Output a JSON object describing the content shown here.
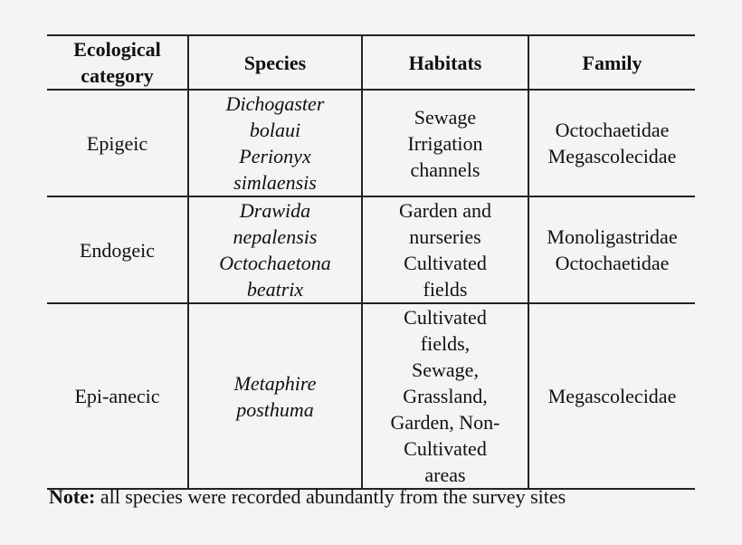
{
  "table": {
    "headers": [
      [
        "Ecological",
        "category"
      ],
      [
        "Species"
      ],
      [
        "Habitats"
      ],
      [
        "Family"
      ]
    ],
    "rows": [
      {
        "category": "Epigeic",
        "species": [
          "Dichogaster",
          "bolaui",
          "Perionyx",
          "simlaensis"
        ],
        "habitats": [
          "Sewage",
          "Irrigation",
          "channels"
        ],
        "family": [
          "Octochaetidae",
          "Megascolecidae"
        ]
      },
      {
        "category": "Endogeic",
        "species": [
          "Drawida",
          "nepalensis",
          "Octochaetona",
          "beatrix"
        ],
        "habitats": [
          "Garden and",
          "nurseries",
          "Cultivated",
          "fields"
        ],
        "family": [
          "Monoligastridae",
          "Octochaetidae"
        ]
      },
      {
        "category": "Epi-anecic",
        "species": [
          "Metaphire",
          "posthuma"
        ],
        "habitats": [
          "Cultivated",
          "fields,",
          "Sewage,",
          "Grassland,",
          "Garden, Non-",
          "Cultivated",
          "areas"
        ],
        "family": [
          "Megascolecidae"
        ]
      }
    ]
  },
  "note": {
    "label": "Note:",
    "text": " all species were recorded abundantly from the survey sites"
  }
}
